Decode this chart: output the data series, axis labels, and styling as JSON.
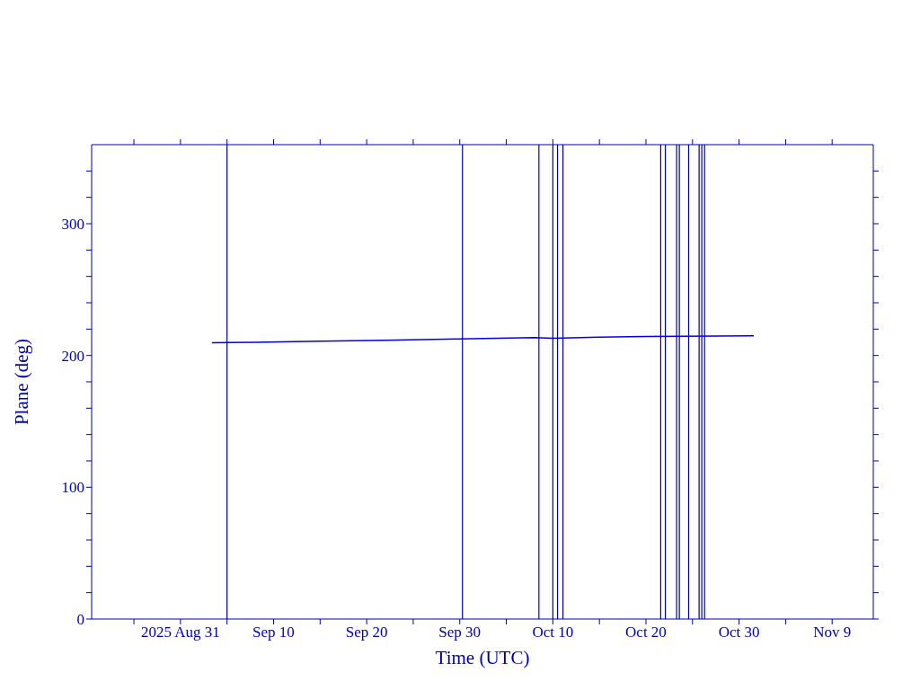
{
  "chart_data": {
    "type": "line",
    "xlabel": "Time (UTC)",
    "ylabel": "Plane (deg)",
    "x": [
      "2025-09-03T09:00",
      "2025-09-08",
      "2025-09-15",
      "2025-09-22",
      "2025-09-30",
      "2025-10-08",
      "2025-10-10",
      "2025-10-15",
      "2025-10-20",
      "2025-10-31T14:00"
    ],
    "series": [
      {
        "color": "#0000e0",
        "values": [
          209.6,
          210,
          210.8,
          211.5,
          212.5,
          213.5,
          213,
          214,
          214.5,
          215
        ]
      }
    ],
    "xlim": [
      "2025-08-21T11:00",
      "2025-11-13T10:00"
    ],
    "xticks": [
      {
        "value": "2025-08-26",
        "label": null
      },
      {
        "value": "2025-08-31",
        "label": "2025 Aug 31"
      },
      {
        "value": "2025-09-05",
        "label": null
      },
      {
        "value": "2025-09-10",
        "label": "Sep 10"
      },
      {
        "value": "2025-09-15",
        "label": null
      },
      {
        "value": "2025-09-20",
        "label": "Sep 20"
      },
      {
        "value": "2025-09-25",
        "label": null
      },
      {
        "value": "2025-09-30",
        "label": "Sep 30"
      },
      {
        "value": "2025-10-05",
        "label": null
      },
      {
        "value": "2025-10-10",
        "label": "Oct 10"
      },
      {
        "value": "2025-10-15",
        "label": null
      },
      {
        "value": "2025-10-20",
        "label": "Oct 20"
      },
      {
        "value": "2025-10-25",
        "label": null
      },
      {
        "value": "2025-10-30",
        "label": "Oct 30"
      },
      {
        "value": "2025-11-04",
        "label": null
      },
      {
        "value": "2025-11-09",
        "label": "Nov 9"
      }
    ],
    "ylim": [
      0,
      360
    ],
    "yticks": [
      0,
      {
        "value": 20,
        "label": null
      },
      {
        "value": 40,
        "label": null
      },
      {
        "value": 60,
        "label": null
      },
      {
        "value": 80,
        "label": null
      },
      100,
      {
        "value": 120,
        "label": null
      },
      {
        "value": 140,
        "label": null
      },
      {
        "value": 160,
        "label": null
      },
      {
        "value": 180,
        "label": null
      },
      200,
      {
        "value": 220,
        "label": null
      },
      {
        "value": 240,
        "label": null
      },
      {
        "value": 260,
        "label": null
      },
      {
        "value": 280,
        "label": null
      },
      300,
      {
        "value": 320,
        "label": null
      },
      {
        "value": 340,
        "label": null
      }
    ],
    "ref_lines": [
      {
        "axis": "x",
        "value": "2025-09-05",
        "color": "#00009c"
      },
      {
        "axis": "x",
        "value": "2025-09-30T07:00",
        "color": "#00009c"
      },
      {
        "axis": "x",
        "value": "2025-10-08T12:00",
        "color": "#0000e0"
      },
      {
        "axis": "x",
        "value": "2025-10-10",
        "color": "#00009c"
      },
      {
        "axis": "x",
        "value": "2025-10-10T12:00",
        "color": "#00009c"
      },
      {
        "axis": "x",
        "value": "2025-10-11T02:00",
        "color": "#00009c"
      },
      {
        "axis": "x",
        "value": "2025-10-21T14:00",
        "color": "#00009c"
      },
      {
        "axis": "x",
        "value": "2025-10-22T02:00",
        "color": "#00009c"
      },
      {
        "axis": "x",
        "value": "2025-10-23T07:00",
        "color": "#00009c"
      },
      {
        "axis": "x",
        "value": "2025-10-23T14:00",
        "color": "#00009c"
      },
      {
        "axis": "x",
        "value": "2025-10-24T14:00",
        "color": "#00009c"
      },
      {
        "axis": "x",
        "value": "2025-10-25T17:00",
        "color": "#00009c"
      },
      {
        "axis": "x",
        "value": "2025-10-26",
        "color": "#00009c"
      },
      {
        "axis": "x",
        "value": "2025-10-26T07:00",
        "color": "#00009c"
      }
    ],
    "grid": false,
    "legend": false,
    "marker": "none",
    "line_style": "solid"
  }
}
